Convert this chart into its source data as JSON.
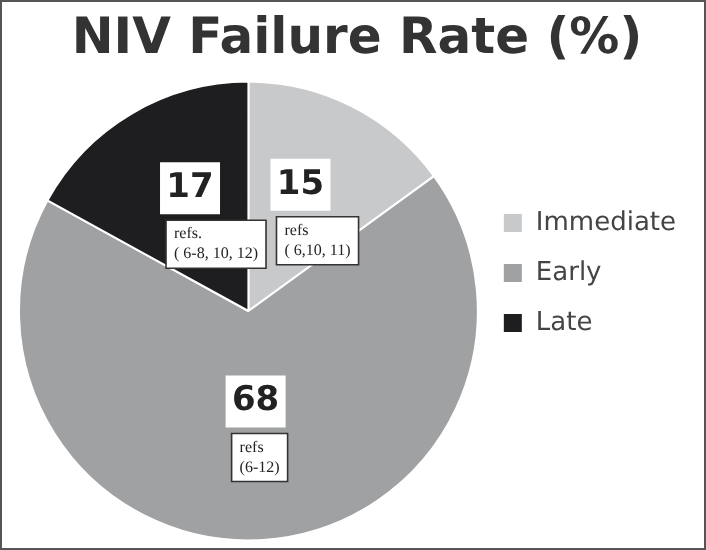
{
  "chart_data": {
    "type": "pie",
    "title": "NIV Failure Rate (%)",
    "categories": [
      "Immediate",
      "Early",
      "Late"
    ],
    "values": [
      15,
      68,
      17
    ],
    "colors": [
      "#c8c9cb",
      "#a0a1a3",
      "#1e1e20"
    ],
    "data_labels": true,
    "legend": "right",
    "annotations": [
      "refs\n( 6,10, 11)",
      "refs\n(6-12)",
      "refs.\n( 6-8, 10, 12)"
    ]
  }
}
